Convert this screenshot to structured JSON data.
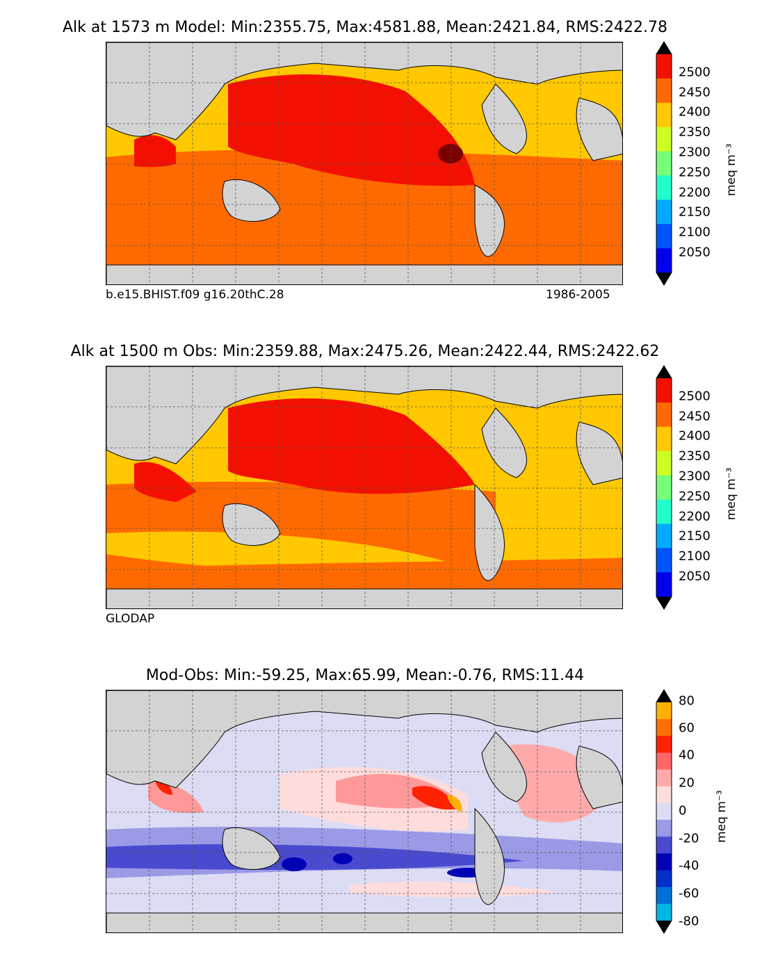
{
  "panels": [
    {
      "title": "Alk at 1573 m Model: Min:2355.75, Max:4581.88, Mean:2421.84, RMS:2422.78",
      "left_note": "b.e15.BHIST.f09 g16.20thC.28",
      "right_note": "1986-2005",
      "colorbar": {
        "ticks": [
          "2500",
          "2450",
          "2400",
          "2350",
          "2300",
          "2250",
          "2200",
          "2150",
          "2100",
          "2050"
        ],
        "unit": "meq m⁻³",
        "colors": [
          "#7a0000",
          "#f41000",
          "#ff6a00",
          "#ffc800",
          "#ccff22",
          "#77ff77",
          "#22ffcc",
          "#00aaff",
          "#0055ff",
          "#0000ee",
          "#00007f"
        ]
      }
    },
    {
      "title": "Alk at 1500 m Obs: Min:2359.88, Max:2475.26, Mean:2422.44, RMS:2422.62",
      "left_note": "GLODAP",
      "right_note": "",
      "colorbar": {
        "ticks": [
          "2500",
          "2450",
          "2400",
          "2350",
          "2300",
          "2250",
          "2200",
          "2150",
          "2100",
          "2050"
        ],
        "unit": "meq m⁻³",
        "colors": [
          "#7a0000",
          "#f41000",
          "#ff6a00",
          "#ffc800",
          "#ccff22",
          "#77ff77",
          "#22ffcc",
          "#00aaff",
          "#0055ff",
          "#0000ee",
          "#00007f"
        ]
      }
    },
    {
      "title": "Mod-Obs: Min:-59.25, Max:65.99, Mean:-0.76, RMS:11.44",
      "left_note": "",
      "right_note": "",
      "colorbar": {
        "ticks": [
          "80",
          "60",
          "40",
          "20",
          "0",
          "-20",
          "-40",
          "-60",
          "-80"
        ],
        "unit": "meq m⁻³",
        "colors": [
          "#ffff22",
          "#ffb000",
          "#ff7000",
          "#ff2200",
          "#ff6666",
          "#ffaaaa",
          "#ffdcdc",
          "#dcdcf4",
          "#9a9ae6",
          "#4a4ad0",
          "#0000b4",
          "#0030c8",
          "#0070d8",
          "#00b4e4",
          "#00ffff"
        ]
      }
    }
  ],
  "colors": {
    "land": "#d3d3d3",
    "no_data": "#ffffff",
    "grid": "#555555"
  }
}
